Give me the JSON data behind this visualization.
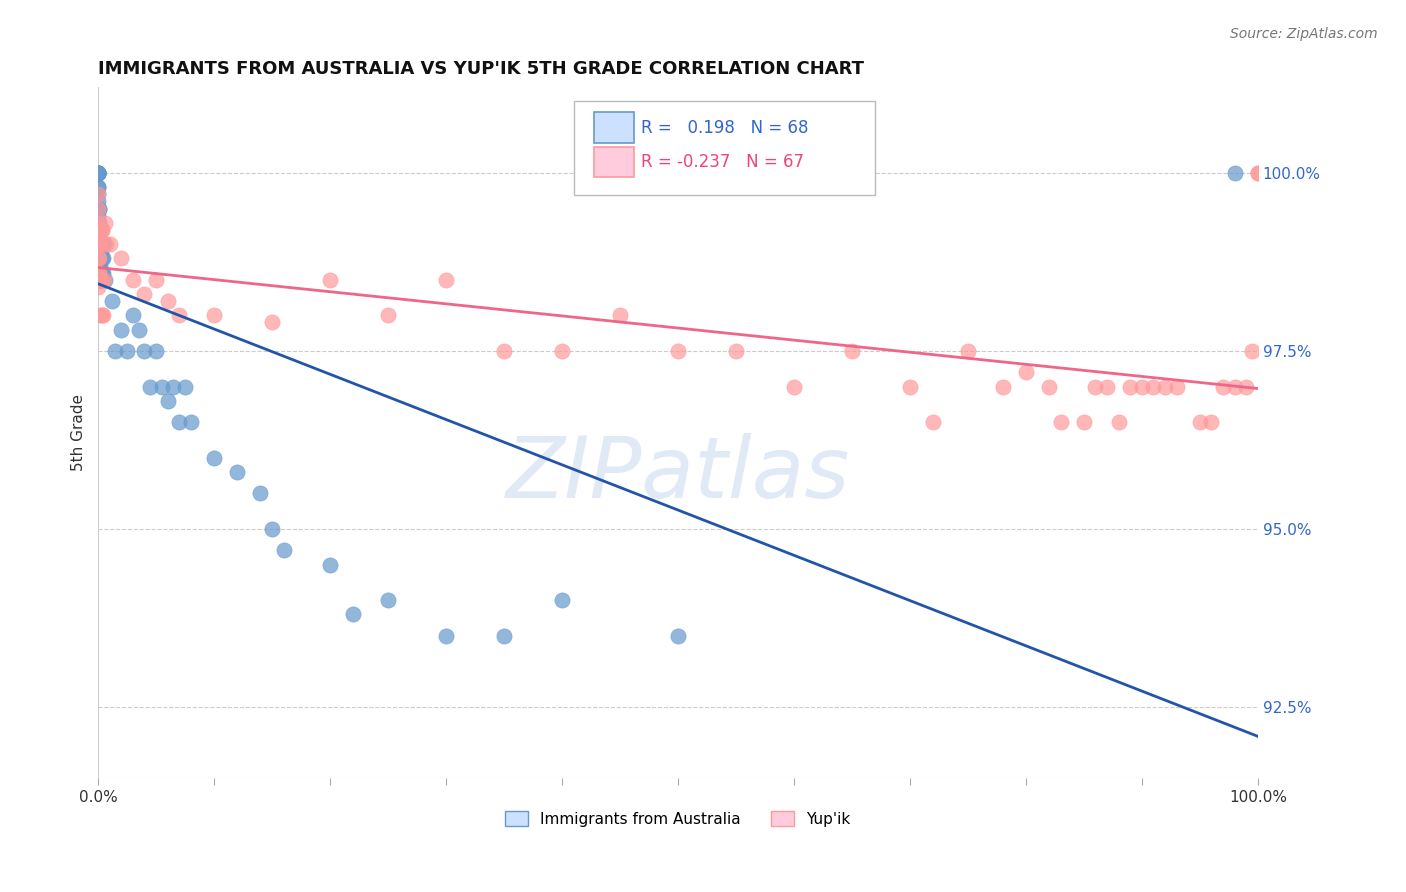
{
  "title": "IMMIGRANTS FROM AUSTRALIA VS YUP'IK 5TH GRADE CORRELATION CHART",
  "source": "Source: ZipAtlas.com",
  "ylabel": "5th Grade",
  "y_ticks": [
    92.5,
    95.0,
    97.5,
    100.0
  ],
  "y_tick_labels": [
    "92.5%",
    "95.0%",
    "97.5%",
    "100.0%"
  ],
  "xlim": [
    0.0,
    100.0
  ],
  "ylim": [
    91.5,
    101.2
  ],
  "blue_R": 0.198,
  "blue_N": 68,
  "pink_R": -0.237,
  "pink_N": 67,
  "blue_color": "#6699CC",
  "pink_color": "#FF9999",
  "blue_line_color": "#2255AA",
  "pink_line_color": "#EE6688",
  "blue_label": "Immigrants from Australia",
  "pink_label": "Yup'ik",
  "blue_x": [
    0.0,
    0.0,
    0.0,
    0.0,
    0.0,
    0.0,
    0.0,
    0.0,
    0.0,
    0.0,
    0.0,
    0.0,
    0.0,
    0.0,
    0.0,
    0.0,
    0.0,
    0.0,
    0.05,
    0.05,
    0.05,
    0.1,
    0.1,
    0.1,
    0.12,
    0.15,
    0.15,
    0.15,
    0.18,
    0.2,
    0.2,
    0.25,
    0.25,
    0.3,
    0.3,
    0.35,
    0.4,
    0.45,
    0.5,
    0.6,
    1.2,
    1.5,
    2.0,
    2.5,
    3.0,
    3.5,
    4.0,
    4.5,
    5.0,
    5.5,
    6.0,
    6.5,
    7.0,
    7.5,
    8.0,
    10.0,
    12.0,
    14.0,
    15.0,
    16.0,
    20.0,
    22.0,
    25.0,
    30.0,
    35.0,
    40.0,
    50.0,
    98.0
  ],
  "blue_y": [
    100.0,
    100.0,
    100.0,
    100.0,
    100.0,
    100.0,
    100.0,
    100.0,
    100.0,
    99.8,
    99.8,
    99.7,
    99.6,
    99.5,
    99.5,
    99.4,
    99.3,
    99.2,
    99.5,
    99.3,
    99.0,
    99.2,
    98.8,
    99.0,
    99.5,
    99.0,
    98.8,
    98.5,
    98.8,
    99.0,
    98.7,
    98.9,
    98.5,
    98.6,
    99.0,
    98.8,
    98.6,
    98.8,
    99.0,
    98.5,
    98.2,
    97.5,
    97.8,
    97.5,
    98.0,
    97.8,
    97.5,
    97.0,
    97.5,
    97.0,
    96.8,
    97.0,
    96.5,
    97.0,
    96.5,
    96.0,
    95.8,
    95.5,
    95.0,
    94.7,
    94.5,
    93.8,
    94.0,
    93.5,
    93.5,
    94.0,
    93.5,
    100.0
  ],
  "pink_x": [
    0.0,
    0.0,
    0.0,
    0.0,
    0.0,
    0.0,
    0.0,
    0.0,
    0.0,
    0.05,
    0.1,
    0.1,
    0.12,
    0.15,
    0.2,
    0.2,
    0.25,
    0.3,
    0.3,
    0.35,
    0.4,
    0.5,
    0.6,
    0.7,
    1.0,
    2.0,
    3.0,
    4.0,
    5.0,
    6.0,
    7.0,
    10.0,
    15.0,
    20.0,
    25.0,
    30.0,
    35.0,
    40.0,
    45.0,
    50.0,
    55.0,
    60.0,
    65.0,
    70.0,
    72.0,
    75.0,
    78.0,
    80.0,
    82.0,
    83.0,
    85.0,
    86.0,
    87.0,
    88.0,
    89.0,
    90.0,
    91.0,
    92.0,
    93.0,
    95.0,
    96.0,
    97.0,
    98.0,
    99.0,
    99.5,
    100.0,
    100.0
  ],
  "pink_y": [
    99.7,
    99.5,
    99.3,
    99.2,
    99.0,
    98.8,
    98.6,
    98.5,
    98.4,
    99.0,
    98.8,
    98.6,
    99.0,
    98.5,
    99.2,
    98.0,
    98.5,
    99.2,
    98.0,
    99.2,
    98.0,
    98.5,
    99.3,
    99.0,
    99.0,
    98.8,
    98.5,
    98.3,
    98.5,
    98.2,
    98.0,
    98.0,
    97.9,
    98.5,
    98.0,
    98.5,
    97.5,
    97.5,
    98.0,
    97.5,
    97.5,
    97.0,
    97.5,
    97.0,
    96.5,
    97.5,
    97.0,
    97.2,
    97.0,
    96.5,
    96.5,
    97.0,
    97.0,
    96.5,
    97.0,
    97.0,
    97.0,
    97.0,
    97.0,
    96.5,
    96.5,
    97.0,
    97.0,
    97.0,
    97.5,
    100.0,
    100.0
  ]
}
